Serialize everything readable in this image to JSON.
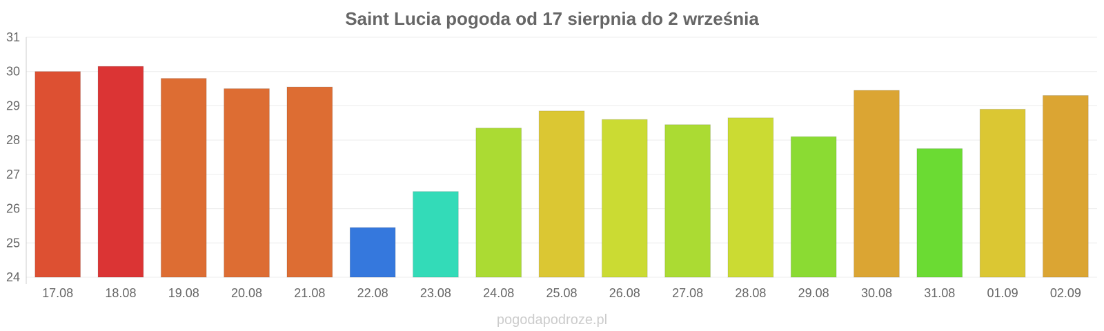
{
  "chart_data": {
    "type": "bar",
    "title": "Saint Lucia pogoda od 17 sierpnia do 2 września",
    "categories": [
      "17.08",
      "18.08",
      "19.08",
      "20.08",
      "21.08",
      "22.08",
      "23.08",
      "24.08",
      "25.08",
      "26.08",
      "27.08",
      "28.08",
      "29.08",
      "30.08",
      "31.08",
      "01.09",
      "02.09"
    ],
    "values": [
      30.0,
      30.15,
      29.8,
      29.5,
      29.55,
      25.45,
      26.5,
      28.35,
      28.85,
      28.6,
      28.45,
      28.65,
      28.1,
      29.45,
      27.75,
      28.9,
      29.3
    ],
    "colors": [
      "#dd5032",
      "#db3434",
      "#dd6d33",
      "#dd6d33",
      "#dd6d33",
      "#3578dd",
      "#33dbb8",
      "#abdb33",
      "#dbc733",
      "#cbdb33",
      "#abdb33",
      "#cbdb33",
      "#8bdb33",
      "#dba533",
      "#6bdb33",
      "#dbc733",
      "#dba533"
    ],
    "ylim": [
      24,
      31
    ],
    "yticks": [
      24,
      25,
      26,
      27,
      28,
      29,
      30,
      31
    ],
    "grid": true,
    "legend": "none",
    "xlabel": "",
    "ylabel": ""
  },
  "watermark": "pogodapodroze.pl"
}
